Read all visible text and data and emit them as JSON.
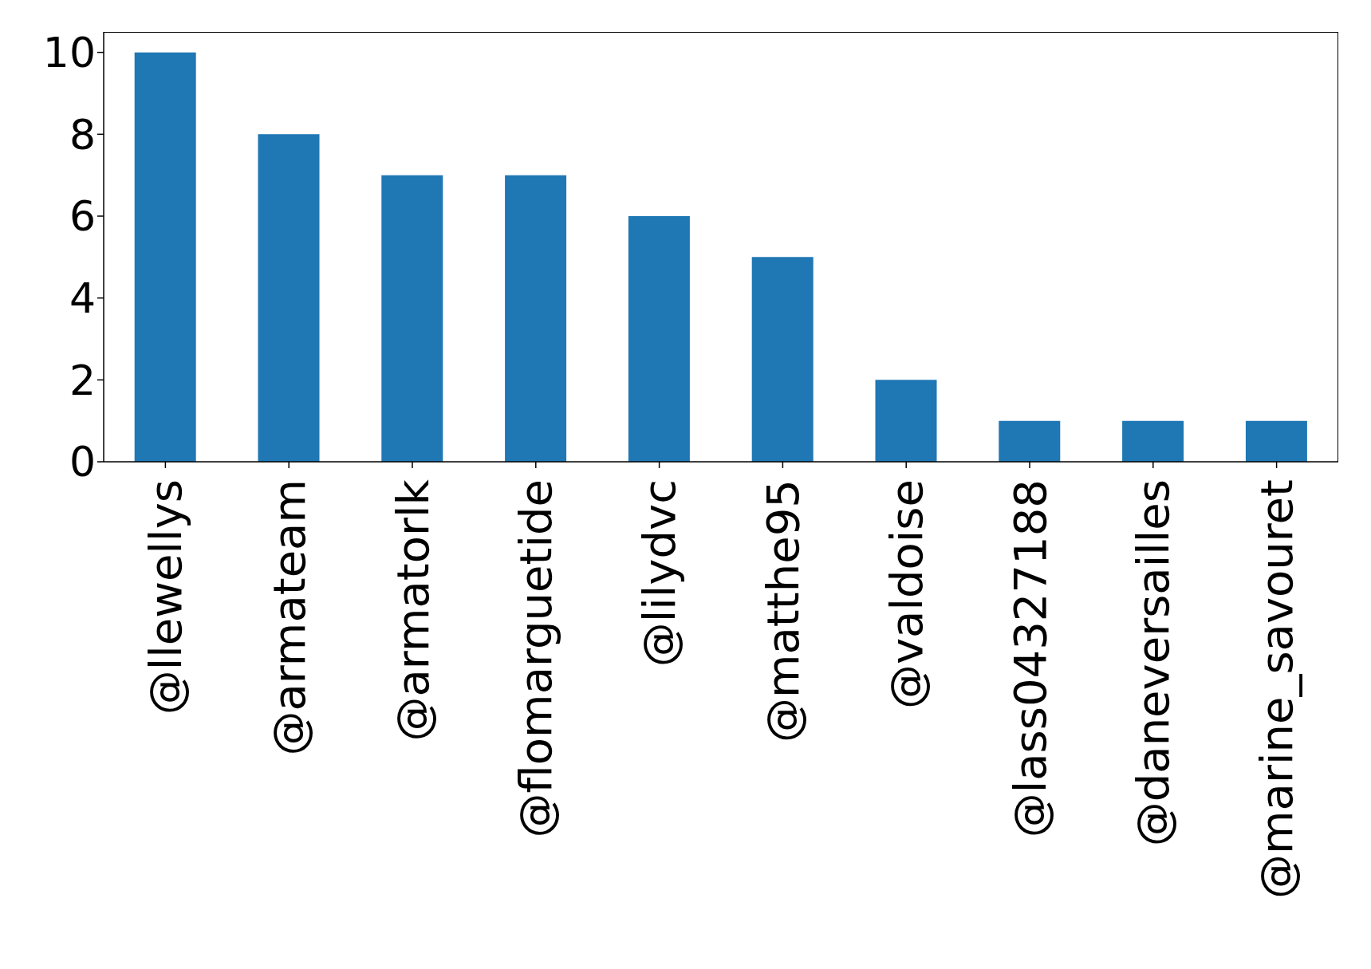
{
  "chart_data": {
    "type": "bar",
    "categories": [
      "@llewellys",
      "@armateam",
      "@armatorlk",
      "@flomarguetide",
      "@lilydvc",
      "@matthe95",
      "@valdoise",
      "@lass04327188",
      "@daneversailles",
      "@marine_savouret"
    ],
    "values": [
      10,
      8,
      7,
      7,
      6,
      5,
      2,
      1,
      1,
      1
    ],
    "color": "#1f77b4",
    "ylim": [
      0,
      10.5
    ],
    "yticks": [
      0,
      2,
      4,
      6,
      8,
      10
    ],
    "grid": false
  }
}
